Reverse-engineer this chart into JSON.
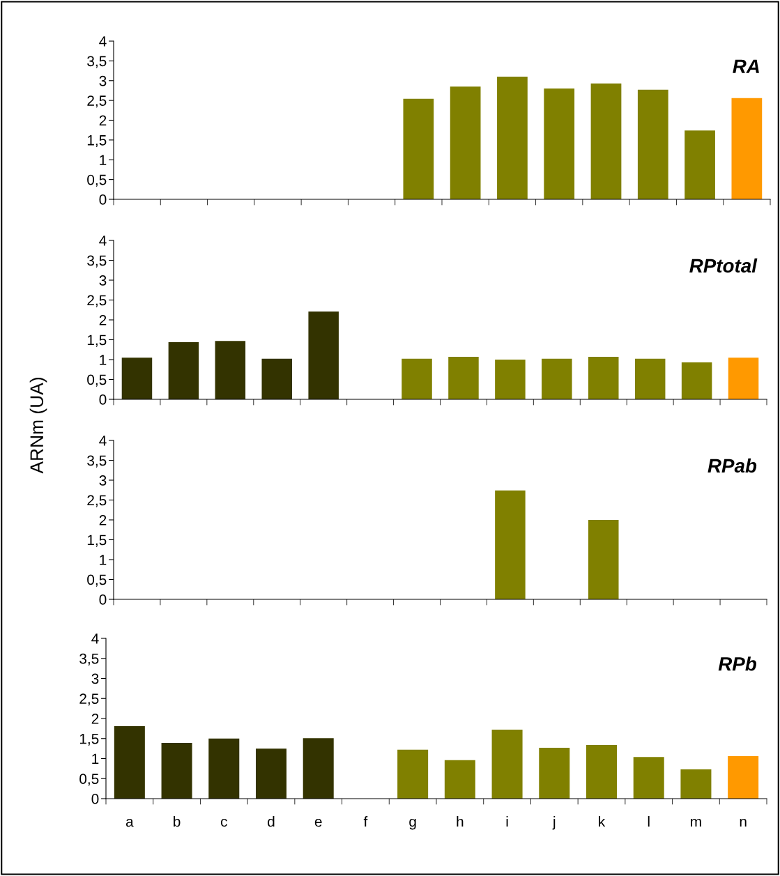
{
  "chart_data": [
    {
      "type": "bar",
      "title": "RA",
      "categories": [
        null,
        null,
        null,
        null,
        null,
        null,
        null,
        null,
        null,
        null,
        null,
        null,
        null,
        null
      ],
      "values": [
        null,
        null,
        null,
        null,
        null,
        null,
        2.54,
        2.85,
        3.1,
        2.8,
        2.93,
        2.77,
        1.74,
        2.56
      ],
      "colors": [
        "#333300",
        "#333300",
        "#333300",
        "#333300",
        "#333300",
        "#333300",
        "#808000",
        "#808000",
        "#808000",
        "#808000",
        "#808000",
        "#808000",
        "#808000",
        "#ff9900"
      ],
      "ylim": [
        0,
        4
      ],
      "yticks": [
        0,
        {
          "value": 0.5,
          "label": "0,5"
        },
        1,
        {
          "value": 1.5,
          "label": "1,5"
        },
        2,
        {
          "value": 2.5,
          "label": "2,5"
        },
        3,
        {
          "value": 3.5,
          "label": "3,5"
        },
        4
      ],
      "tick_labels": "y"
    },
    {
      "type": "bar",
      "title": "RPtotal",
      "ylabel": "ARNm (UA)",
      "categories": [
        null,
        null,
        null,
        null,
        null,
        null,
        null,
        null,
        null,
        null,
        null,
        null,
        null,
        null
      ],
      "values": [
        1.05,
        1.44,
        1.47,
        1.02,
        2.21,
        null,
        1.02,
        1.07,
        1.0,
        1.02,
        1.07,
        1.02,
        0.93,
        1.05
      ],
      "colors": [
        "#333300",
        "#333300",
        "#333300",
        "#333300",
        "#333300",
        "#333300",
        "#808000",
        "#808000",
        "#808000",
        "#808000",
        "#808000",
        "#808000",
        "#808000",
        "#ff9900"
      ],
      "ylim": [
        0,
        4
      ],
      "yticks": [
        0,
        {
          "value": 0.5,
          "label": "0,5"
        },
        1,
        {
          "value": 1.5,
          "label": "1,5"
        },
        2,
        {
          "value": 2.5,
          "label": "2,5"
        },
        3,
        {
          "value": 3.5,
          "label": "3,5"
        },
        4
      ],
      "tick_labels": "y"
    },
    {
      "type": "bar",
      "title": "RPab",
      "categories": [
        null,
        null,
        null,
        null,
        null,
        null,
        null,
        null,
        null,
        null,
        null,
        null,
        null,
        null
      ],
      "values": [
        null,
        null,
        null,
        null,
        null,
        null,
        null,
        null,
        2.74,
        null,
        2.0,
        null,
        null,
        null
      ],
      "colors": [
        "#333300",
        "#333300",
        "#333300",
        "#333300",
        "#333300",
        "#333300",
        "#808000",
        "#808000",
        "#808000",
        "#808000",
        "#808000",
        "#808000",
        "#808000",
        "#ff9900"
      ],
      "ylim": [
        0,
        4
      ],
      "yticks": [
        0,
        {
          "value": 0.5,
          "label": "0,5"
        },
        1,
        {
          "value": 1.5,
          "label": "1,5"
        },
        2,
        {
          "value": 2.5,
          "label": "2,5"
        },
        3,
        {
          "value": 3.5,
          "label": "3,5"
        },
        4
      ],
      "tick_labels": "y"
    },
    {
      "type": "bar",
      "title": "RPb",
      "categories": [
        "a",
        "b",
        "c",
        "d",
        "e",
        "f",
        "g",
        "h",
        "i",
        "j",
        "k",
        "l",
        "m",
        "n"
      ],
      "values": [
        1.81,
        1.39,
        1.5,
        1.25,
        1.51,
        null,
        1.22,
        0.96,
        1.72,
        1.27,
        1.34,
        1.04,
        0.73,
        1.06
      ],
      "colors": [
        "#333300",
        "#333300",
        "#333300",
        "#333300",
        "#333300",
        "#333300",
        "#808000",
        "#808000",
        "#808000",
        "#808000",
        "#808000",
        "#808000",
        "#808000",
        "#ff9900"
      ],
      "ylim": [
        0,
        4
      ],
      "yticks": [
        0,
        {
          "value": 0.5,
          "label": "0,5"
        },
        1,
        {
          "value": 1.5,
          "label": "1,5"
        },
        2,
        {
          "value": 2.5,
          "label": "2,5"
        },
        3,
        {
          "value": 3.5,
          "label": "3,5"
        },
        4
      ]
    }
  ]
}
